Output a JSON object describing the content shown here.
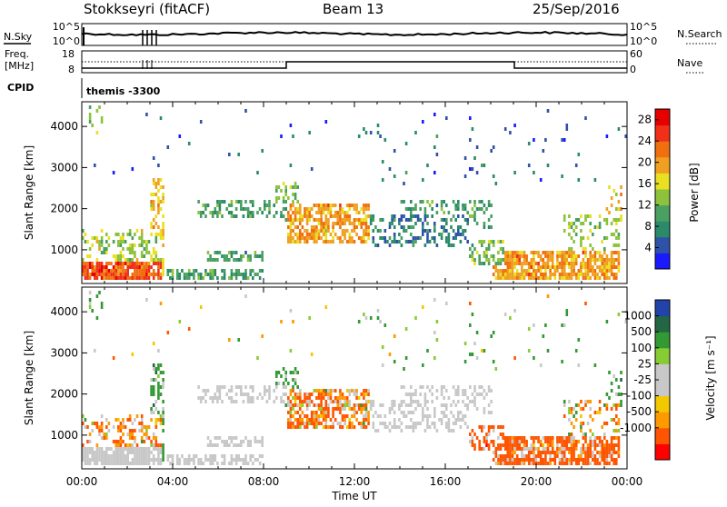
{
  "header": {
    "radar": "Stokkseyri (fitACF)",
    "beam": "Beam 13",
    "date": "25/Sep/2016"
  },
  "top_panels": {
    "nsky_label": "N.Sky",
    "nsky_ticks": [
      "10^5",
      "10^0"
    ],
    "nsearch_label": "N.Search",
    "nsearch_ticks": [
      "10^5",
      "10^0"
    ],
    "freq_label_1": "Freq.",
    "freq_label_2": "[MHz]",
    "freq_ticks": [
      "18",
      "8"
    ],
    "nave_label": "Nave",
    "nave_ticks": [
      "60",
      "0"
    ],
    "cpid_label": "CPID",
    "cpid_value": "themis -3300"
  },
  "colors": {
    "power_scale": [
      "#1a1aff",
      "#2e52a8",
      "#2a8a6a",
      "#4aa060",
      "#8cc23c",
      "#e8e020",
      "#f0a020",
      "#f07010",
      "#f03018",
      "#e80000"
    ],
    "velocity_scale": [
      "#ff0000",
      "#ff5500",
      "#ff9900",
      "#f2c800",
      "#c8c8c8",
      "#c8c8c8",
      "#88cc33",
      "#339933",
      "#226644",
      "#2244aa"
    ],
    "ground_gray": "#c8c8c8"
  },
  "chart_data": [
    {
      "type": "heatmap",
      "name": "power",
      "xlabel": "",
      "ylabel": "Slant Range [km]",
      "xlim_hours": [
        0,
        24
      ],
      "ylim_km": [
        180,
        4600
      ],
      "yticks": [
        "1000",
        "2000",
        "3000",
        "4000"
      ],
      "colorbar_label": "Power [dB]",
      "colorbar_ticks": [
        "4",
        "8",
        "12",
        "16",
        "20",
        "24",
        "28"
      ],
      "colorbar_range": [
        0,
        30
      ]
    },
    {
      "type": "heatmap",
      "name": "velocity",
      "xlabel": "Time UT",
      "ylabel": "Slant Range [km]",
      "xlim_hours": [
        0,
        24
      ],
      "ylim_km": [
        180,
        4600
      ],
      "xticks": [
        "00:00",
        "04:00",
        "08:00",
        "12:00",
        "16:00",
        "20:00",
        "00:00"
      ],
      "yticks": [
        "1000",
        "2000",
        "3000",
        "4000"
      ],
      "colorbar_label": "Velocity [m s⁻¹]",
      "colorbar_ticks": [
        "1000",
        "500",
        "100",
        "25",
        "-25",
        "-100",
        "-500",
        "-1000"
      ]
    }
  ]
}
